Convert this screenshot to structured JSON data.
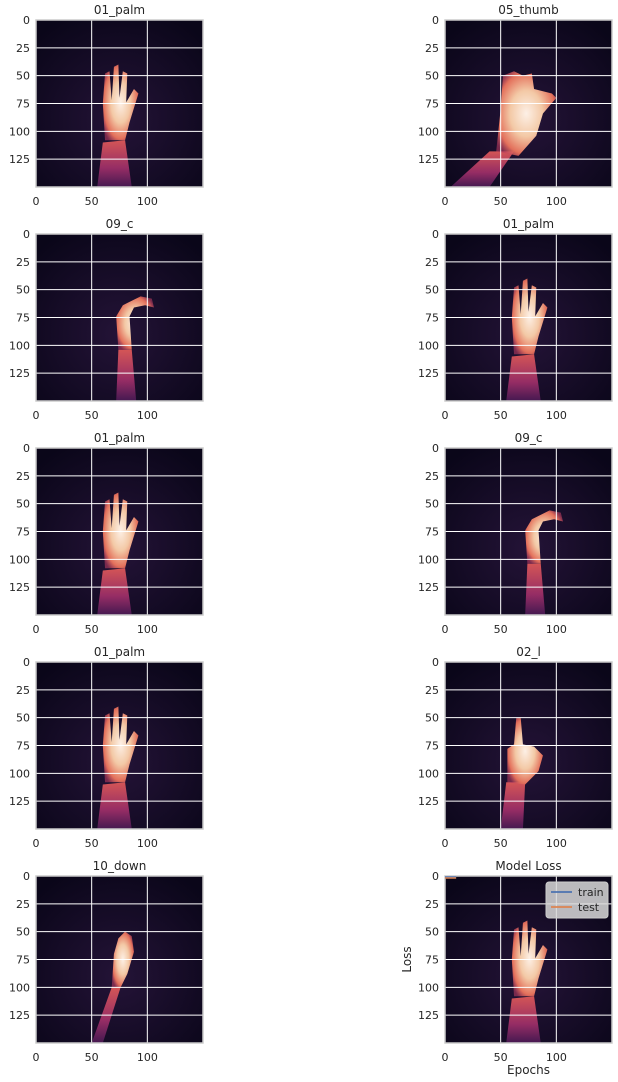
{
  "chart_data": [
    {
      "type": "heatmap",
      "title": "01_palm",
      "xticks": [
        "0",
        "50",
        "100"
      ],
      "yticks": [
        "0",
        "25",
        "50",
        "75",
        "100",
        "125"
      ],
      "hand": "palm"
    },
    {
      "type": "heatmap",
      "title": "05_thumb",
      "xticks": [
        "0",
        "50",
        "100"
      ],
      "yticks": [
        "0",
        "25",
        "50",
        "75",
        "100",
        "125"
      ],
      "hand": "thumb"
    },
    {
      "type": "heatmap",
      "title": "09_c",
      "xticks": [
        "0",
        "50",
        "100"
      ],
      "yticks": [
        "0",
        "25",
        "50",
        "75",
        "100",
        "125"
      ],
      "hand": "c"
    },
    {
      "type": "heatmap",
      "title": "01_palm",
      "xticks": [
        "0",
        "50",
        "100"
      ],
      "yticks": [
        "0",
        "25",
        "50",
        "75",
        "100",
        "125"
      ],
      "hand": "palm"
    },
    {
      "type": "heatmap",
      "title": "01_palm",
      "xticks": [
        "0",
        "50",
        "100"
      ],
      "yticks": [
        "0",
        "25",
        "50",
        "75",
        "100",
        "125"
      ],
      "hand": "palm"
    },
    {
      "type": "heatmap",
      "title": "09_c",
      "xticks": [
        "0",
        "50",
        "100"
      ],
      "yticks": [
        "0",
        "25",
        "50",
        "75",
        "100",
        "125"
      ],
      "hand": "c"
    },
    {
      "type": "heatmap",
      "title": "01_palm",
      "xticks": [
        "0",
        "50",
        "100"
      ],
      "yticks": [
        "0",
        "25",
        "50",
        "75",
        "100",
        "125"
      ],
      "hand": "palm"
    },
    {
      "type": "heatmap",
      "title": "02_l",
      "xticks": [
        "0",
        "50",
        "100"
      ],
      "yticks": [
        "0",
        "25",
        "50",
        "75",
        "100",
        "125"
      ],
      "hand": "l"
    },
    {
      "type": "heatmap",
      "title": "10_down",
      "xticks": [
        "0",
        "50",
        "100"
      ],
      "yticks": [
        "0",
        "25",
        "50",
        "75",
        "100",
        "125"
      ],
      "hand": "down"
    },
    {
      "type": "line",
      "title": "Model Loss",
      "xlabel": "Epochs",
      "ylabel": "Loss",
      "xticks": [
        "0",
        "50",
        "100"
      ],
      "yticks": [
        "0",
        "25",
        "50",
        "75",
        "100",
        "125"
      ],
      "hand": "palm",
      "series": [
        {
          "name": "train",
          "color": "#4c72b0"
        },
        {
          "name": "test",
          "color": "#dd8452"
        }
      ],
      "legend": "top-right"
    }
  ],
  "colors": {
    "background": "#0a0619",
    "grid": "#ffffff",
    "frame": "#cccccc"
  }
}
